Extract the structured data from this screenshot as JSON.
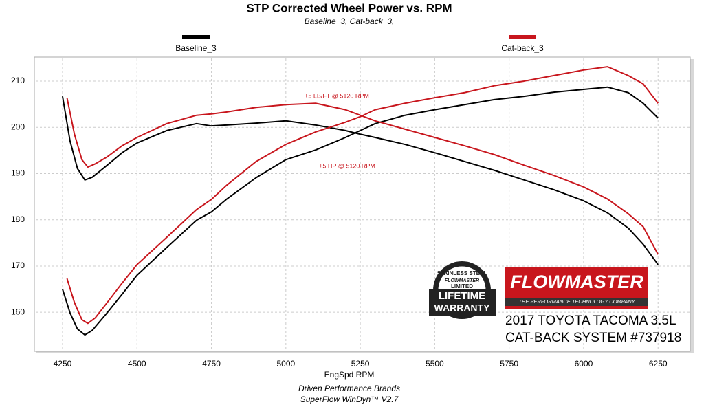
{
  "chart_data": {
    "type": "line",
    "title": "STP Corrected Wheel Power vs. RPM",
    "subtitle": "Baseline_3, Cat-back_3,",
    "x_label": "EngSpd  RPM",
    "footer": [
      "Driven Performance Brands",
      "SuperFlow WinDyn™  V2.7"
    ],
    "annotations": [
      "+5 LB/FT @ 5120 RPM",
      "+5 HP @ 5120 RPM"
    ],
    "xlim": [
      4160,
      6358
    ],
    "ylim": [
      151.7,
      214.9
    ],
    "xticks": [
      4250,
      4500,
      4750,
      5000,
      5250,
      5500,
      5750,
      6000,
      6250
    ],
    "yticks": [
      160,
      170,
      180,
      190,
      200,
      210
    ],
    "grid": true,
    "series": [
      {
        "name": "Baseline_3",
        "color": "#000000",
        "x": [
          4250,
          4275,
          4300,
          4325,
          4350,
          4400,
          4450,
          4500,
          4600,
          4700,
          4750,
          4800,
          4900,
          5000,
          5100,
          5200,
          5250,
          5300,
          5400,
          5500,
          5600,
          5700,
          5800,
          5900,
          6000,
          6080,
          6150,
          6200,
          6250
        ],
        "torque": [
          206.7,
          197.1,
          191.1,
          188.6,
          189.2,
          191.8,
          194.5,
          196.6,
          199.3,
          200.8,
          200.3,
          200.5,
          200.9,
          201.4,
          200.5,
          199.3,
          198.5,
          197.8,
          196.3,
          194.5,
          192.6,
          190.7,
          188.6,
          186.5,
          184.1,
          181.5,
          178.2,
          174.7,
          170.3
        ],
        "hp": [
          165,
          159.9,
          156.4,
          155.1,
          156.1,
          159.9,
          163.9,
          168,
          174,
          179.9,
          181.7,
          184.4,
          189.1,
          193,
          195.1,
          197.8,
          199.3,
          200.8,
          202.6,
          203.8,
          204.9,
          206,
          206.7,
          207.6,
          208.2,
          208.7,
          207.5,
          205.2,
          202
        ]
      },
      {
        "name": "Cat-back_3",
        "color": "#c8161d",
        "x": [
          4265,
          4290,
          4315,
          4335,
          4360,
          4400,
          4450,
          4500,
          4600,
          4700,
          4750,
          4800,
          4900,
          5000,
          5100,
          5200,
          5250,
          5300,
          5400,
          5500,
          5600,
          5700,
          5800,
          5900,
          6000,
          6080,
          6150,
          6200,
          6250
        ],
        "torque": [
          206.4,
          198.5,
          193,
          191.4,
          192.1,
          193.6,
          196,
          197.8,
          200.8,
          202.6,
          202.9,
          203.3,
          204.3,
          204.9,
          205.2,
          203.8,
          202.6,
          201.4,
          199.6,
          197.8,
          196,
          194.1,
          191.8,
          189.6,
          187.1,
          184.5,
          181.3,
          178.5,
          172.5
        ],
        "hp": [
          167.3,
          162.1,
          158.4,
          157.6,
          158.8,
          162.1,
          166.3,
          170.3,
          176.2,
          182.2,
          184.4,
          187.4,
          192.6,
          196.3,
          199,
          201.1,
          202.3,
          203.8,
          205.2,
          206.4,
          207.5,
          209,
          210,
          211.2,
          212.4,
          213.1,
          211.2,
          209.4,
          205.2
        ]
      }
    ],
    "badge": [
      "STAINLESS STEEL",
      "FLOWMASTER",
      "LIMITED",
      "LIFETIME",
      "WARRANTY"
    ],
    "brand": {
      "name": "FLOWMASTER",
      "tagline": "THE PERFORMANCE TECHNOLOGY COMPANY",
      "lines": [
        "2017 TOYOTA TACOMA 3.5L",
        "CAT-BACK SYSTEM #737918"
      ]
    }
  }
}
